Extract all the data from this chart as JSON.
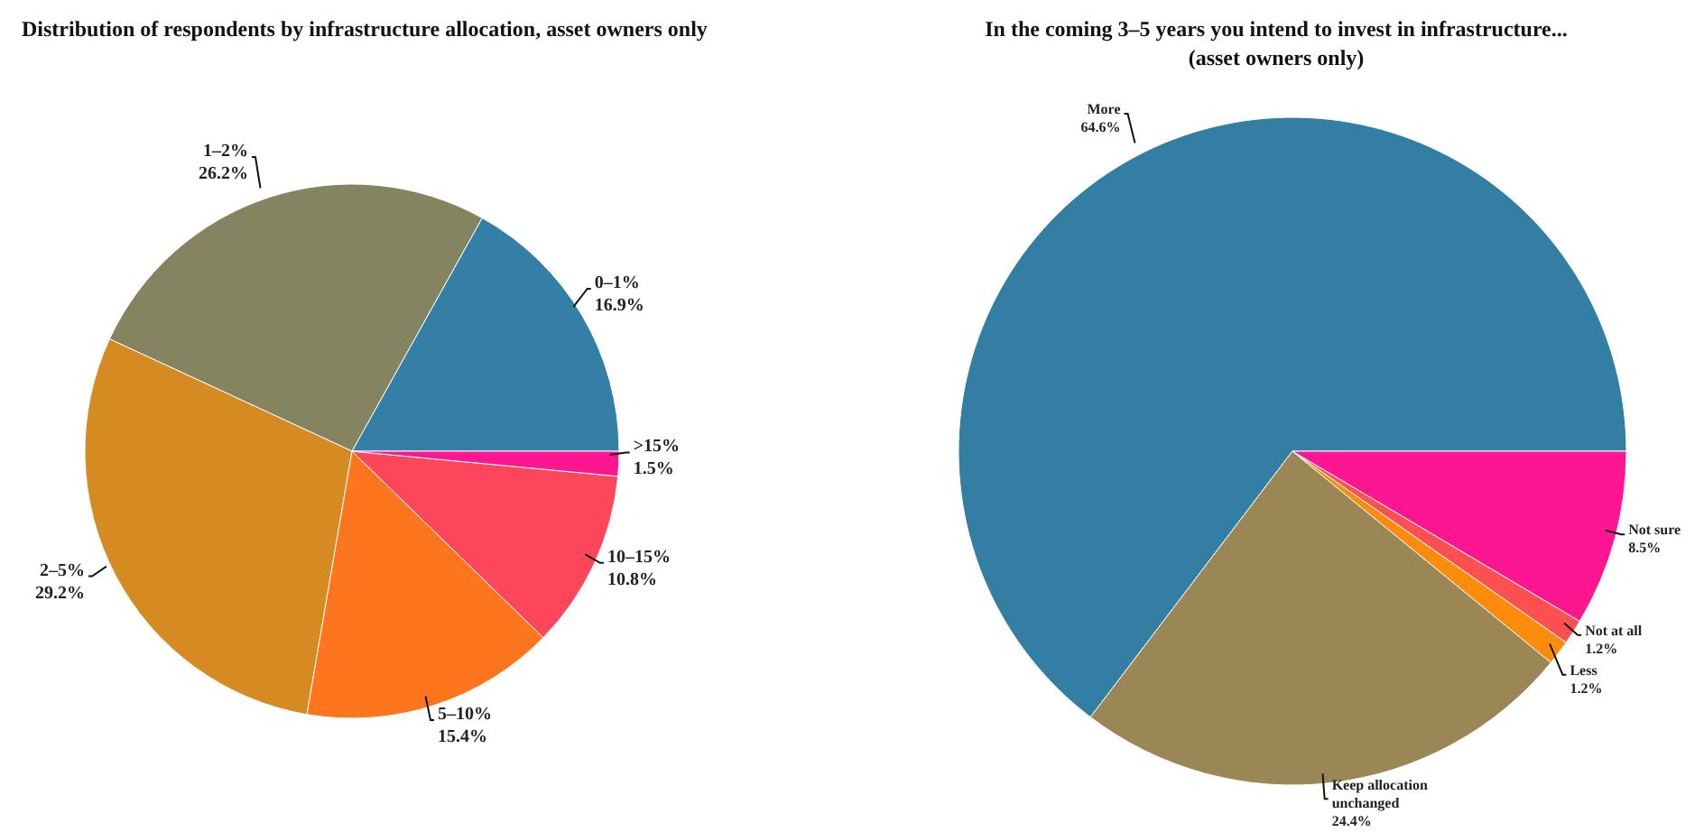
{
  "chart_data": [
    {
      "type": "pie",
      "title": "Distribution of respondents by infrastructure allocation, asset owners only",
      "categories": [
        "0–1%",
        "1–2%",
        "2–5%",
        "5–10%",
        "10–15%",
        ">15%"
      ],
      "values": [
        16.9,
        26.2,
        29.2,
        15.4,
        10.8,
        1.5
      ],
      "value_labels": [
        "16.9%",
        "26.2%",
        "29.2%",
        "15.4%",
        "10.8%",
        "1.5%"
      ],
      "colors": [
        "#337fa5",
        "#858461",
        "#d68a22",
        "#fd761e",
        "#fd4659",
        "#fe1590"
      ]
    },
    {
      "type": "pie",
      "title": "In the coming 3–5 years you intend to invest in infrastructure...\n(asset owners only)",
      "categories": [
        "More",
        "Keep allocation unchanged",
        "Less",
        "Not at all",
        "Not sure"
      ],
      "values": [
        64.6,
        24.4,
        1.2,
        1.2,
        8.5
      ],
      "value_labels": [
        "64.6%",
        "24.4%",
        "1.2%",
        "1.2%",
        "8.5%"
      ],
      "colors": [
        "#337fa3",
        "#9b8756",
        "#fd8c0c",
        "#fe5050",
        "#fe1590"
      ]
    }
  ]
}
